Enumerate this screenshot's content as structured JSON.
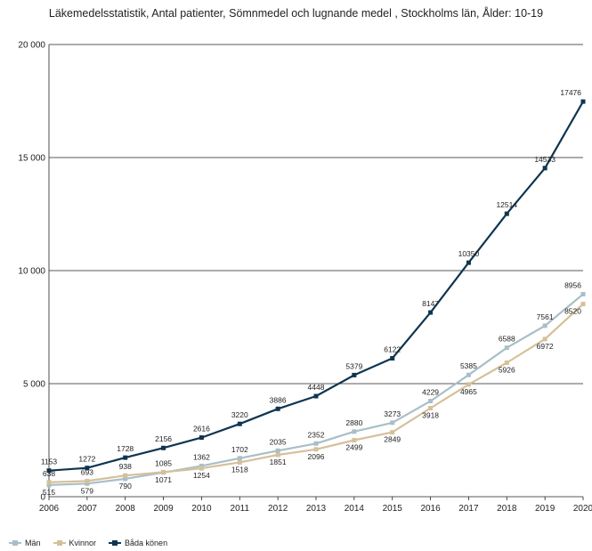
{
  "chart_data": {
    "type": "line",
    "title": "Läkemedelsstatistik, Antal patienter, Sömnmedel och lugnande medel , Stockholms län, Ålder: 10-19",
    "xlabel": "",
    "ylabel": "",
    "x": [
      "2006",
      "2007",
      "2008",
      "2009",
      "2010",
      "2011",
      "2012",
      "2013",
      "2014",
      "2015",
      "2016",
      "2017",
      "2018",
      "2019",
      "2020"
    ],
    "ylim": [
      0,
      20000
    ],
    "yticks": [
      0,
      5000,
      10000,
      15000,
      20000
    ],
    "ytick_labels": [
      "0",
      "5 000",
      "10 000",
      "15 000",
      "20 000"
    ],
    "grid": true,
    "legend_position": "bottom-left",
    "series": [
      {
        "name": "Män",
        "color": "#a9bfc8",
        "values": [
          515,
          579,
          790,
          1071,
          1362,
          1702,
          2035,
          2352,
          2880,
          3273,
          4229,
          5385,
          6588,
          7561,
          8956
        ]
      },
      {
        "name": "Kvinnor",
        "color": "#d6c09a",
        "values": [
          638,
          693,
          938,
          1085,
          1254,
          1518,
          1851,
          2096,
          2499,
          2849,
          3918,
          4965,
          5926,
          6972,
          8520
        ]
      },
      {
        "name": "Båda könen",
        "color": "#0e3550",
        "values": [
          1153,
          1272,
          1728,
          2156,
          2616,
          3220,
          3886,
          4448,
          5379,
          6122,
          8147,
          10350,
          12514,
          14533,
          17476
        ]
      }
    ]
  }
}
